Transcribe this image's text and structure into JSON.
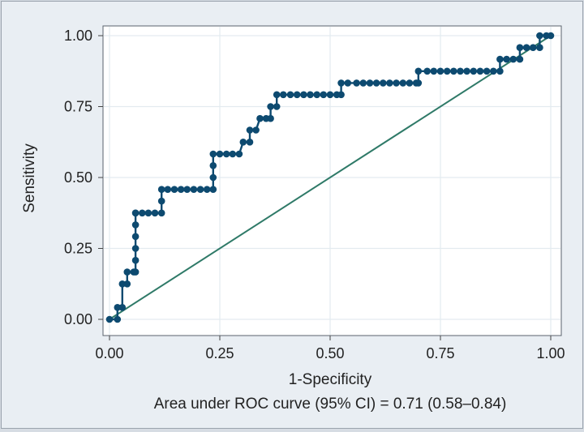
{
  "chart_data": {
    "type": "line",
    "xlabel": "1-Specificity",
    "ylabel": "Sensitivity",
    "note": "Area under ROC curve (95% CI) = 0.71 (0.58–0.84)",
    "xlim": [
      0,
      1
    ],
    "ylim": [
      0,
      1
    ],
    "x_ticks": [
      "0.00",
      "0.25",
      "0.50",
      "0.75",
      "1.00"
    ],
    "y_ticks": [
      "0.00",
      "0.25",
      "0.50",
      "0.75",
      "1.00"
    ],
    "grid": true,
    "legend": "none",
    "series": [
      {
        "x": [
          0,
          0.018,
          0.018,
          0.029,
          0.029,
          0.04,
          0.04,
          0.055,
          0.059,
          0.059,
          0.059,
          0.059,
          0.059,
          0.059,
          0.059,
          0.074,
          0.088,
          0.103,
          0.118,
          0.118,
          0.118,
          0.132,
          0.147,
          0.162,
          0.176,
          0.191,
          0.206,
          0.221,
          0.235,
          0.235,
          0.235,
          0.235,
          0.25,
          0.265,
          0.279,
          0.294,
          0.303,
          0.318,
          0.318,
          0.332,
          0.341,
          0.355,
          0.365,
          0.365,
          0.379,
          0.379,
          0.394,
          0.41,
          0.425,
          0.44,
          0.455,
          0.47,
          0.485,
          0.5,
          0.515,
          0.525,
          0.525,
          0.54,
          0.56,
          0.575,
          0.59,
          0.605,
          0.62,
          0.635,
          0.65,
          0.665,
          0.68,
          0.695,
          0.7,
          0.7,
          0.72,
          0.735,
          0.75,
          0.765,
          0.78,
          0.795,
          0.81,
          0.825,
          0.84,
          0.855,
          0.87,
          0.885,
          0.885,
          0.9,
          0.915,
          0.93,
          0.93,
          0.945,
          0.96,
          0.975,
          0.975,
          0.99,
          1.0
        ],
        "y": [
          0,
          0,
          0.042,
          0.042,
          0.125,
          0.125,
          0.167,
          0.167,
          0.167,
          0.208,
          0.25,
          0.292,
          0.333,
          0.375,
          0.375,
          0.375,
          0.375,
          0.375,
          0.375,
          0.417,
          0.458,
          0.458,
          0.458,
          0.458,
          0.458,
          0.458,
          0.458,
          0.458,
          0.458,
          0.5,
          0.542,
          0.583,
          0.583,
          0.583,
          0.583,
          0.583,
          0.625,
          0.625,
          0.667,
          0.667,
          0.708,
          0.708,
          0.708,
          0.75,
          0.75,
          0.792,
          0.792,
          0.792,
          0.792,
          0.792,
          0.792,
          0.792,
          0.792,
          0.792,
          0.792,
          0.792,
          0.833,
          0.833,
          0.833,
          0.833,
          0.833,
          0.833,
          0.833,
          0.833,
          0.833,
          0.833,
          0.833,
          0.833,
          0.833,
          0.875,
          0.875,
          0.875,
          0.875,
          0.875,
          0.875,
          0.875,
          0.875,
          0.875,
          0.875,
          0.875,
          0.875,
          0.875,
          0.917,
          0.917,
          0.917,
          0.917,
          0.958,
          0.958,
          0.958,
          0.958,
          1.0,
          1.0,
          1.0
        ]
      },
      {
        "x": [
          0,
          1
        ],
        "y": [
          0,
          1
        ]
      }
    ],
    "colors": {
      "roc": "#0d4a70",
      "reference": "#2f7a68",
      "plot_bg": "#ffffff",
      "grid": "#e3ebf0",
      "frame_bg": "#e9eef3"
    }
  }
}
